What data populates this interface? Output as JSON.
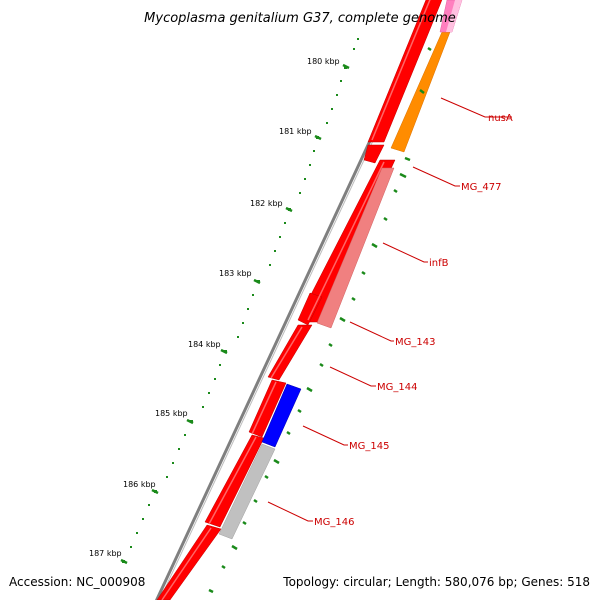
{
  "title": "Mycoplasma genitalium G37, complete genome",
  "footer": {
    "accession": "Accession: NC_000908",
    "summary": "Topology: circular; Length: 580,076 bp; Genes: 518"
  },
  "colors": {
    "background": "#ffffff",
    "backbone": "#808080",
    "gc_ticks": "#1a8a1a",
    "forward_gene": "#ff0000",
    "label_text": "#cc0000",
    "label_line": "#cc0000",
    "nusA": "#ff8c00",
    "MG_477_pink": "#ff7fbf",
    "infB": "#f08080",
    "MG_145": "#0000ff",
    "MG_146": "#c0c0c0"
  },
  "scale": {
    "ticks": [
      {
        "label": "180 kbp"
      },
      {
        "label": "181 kbp"
      },
      {
        "label": "182 kbp"
      },
      {
        "label": "183 kbp"
      },
      {
        "label": "184 kbp"
      },
      {
        "label": "185 kbp"
      },
      {
        "label": "186 kbp"
      },
      {
        "label": "187 kbp"
      }
    ]
  },
  "gene_labels": [
    {
      "name": "nusA",
      "icon": "label-leader-line"
    },
    {
      "name": "MG_477",
      "icon": "label-leader-line"
    },
    {
      "name": "infB",
      "icon": "label-leader-line"
    },
    {
      "name": "MG_143",
      "icon": "label-leader-line"
    },
    {
      "name": "MG_144",
      "icon": "label-leader-line"
    },
    {
      "name": "MG_145",
      "icon": "label-leader-line"
    },
    {
      "name": "MG_146",
      "icon": "label-leader-line"
    }
  ]
}
